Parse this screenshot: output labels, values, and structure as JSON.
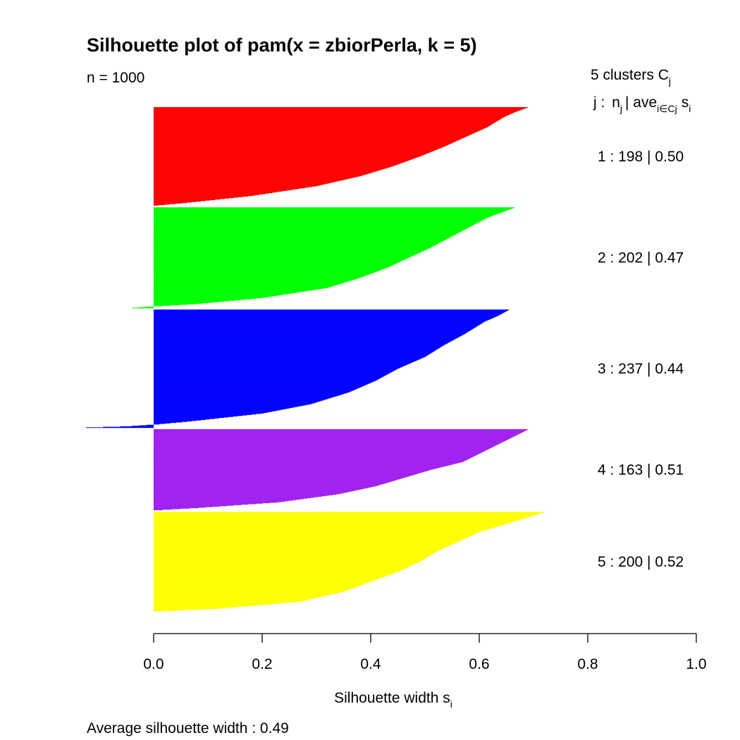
{
  "chart_data": {
    "type": "bar",
    "orientation": "horizontal",
    "title": "Silhouette plot of pam(x = zbiorPerla, k = 5)",
    "n_label": "n = 1000",
    "xlabel": "Silhouette width",
    "xlabel_subscript": "i",
    "xlim": [
      0,
      1
    ],
    "xticks": [
      "0.0",
      "0.2",
      "0.4",
      "0.6",
      "0.8",
      "1.0"
    ],
    "legend": {
      "header_line1": "5  clusters",
      "header_c": "C",
      "header_c_sub": "j",
      "header_line2_j": "j :",
      "header_n": "n",
      "header_n_sub": "j",
      "header_ave": "| ave",
      "header_ave_sub": "i∈Cj",
      "header_s": "s",
      "header_s_sub": "i"
    },
    "footer": "Average silhouette width :  0.49",
    "series": [
      {
        "cluster": "1",
        "n": "198",
        "ave": "0.50",
        "count": 198,
        "color": "#FF0000",
        "max": 0.69,
        "min": 0.0,
        "profile": [
          [
            0,
            0.69
          ],
          [
            0.05,
            0.665
          ],
          [
            0.1,
            0.645
          ],
          [
            0.2,
            0.615
          ],
          [
            0.3,
            0.575
          ],
          [
            0.4,
            0.535
          ],
          [
            0.5,
            0.49
          ],
          [
            0.6,
            0.44
          ],
          [
            0.7,
            0.38
          ],
          [
            0.8,
            0.3
          ],
          [
            0.9,
            0.18
          ],
          [
            0.97,
            0.06
          ],
          [
            1,
            0.0
          ]
        ]
      },
      {
        "cluster": "2",
        "n": "202",
        "ave": "0.47",
        "count": 202,
        "color": "#00FF00",
        "max": 0.665,
        "min": -0.04,
        "profile": [
          [
            0,
            0.665
          ],
          [
            0.05,
            0.64
          ],
          [
            0.1,
            0.615
          ],
          [
            0.2,
            0.58
          ],
          [
            0.3,
            0.545
          ],
          [
            0.4,
            0.51
          ],
          [
            0.5,
            0.47
          ],
          [
            0.6,
            0.43
          ],
          [
            0.7,
            0.38
          ],
          [
            0.8,
            0.32
          ],
          [
            0.9,
            0.2
          ],
          [
            0.96,
            0.08
          ],
          [
            0.985,
            0.0
          ],
          [
            1,
            -0.04
          ]
        ]
      },
      {
        "cluster": "3",
        "n": "237",
        "ave": "0.44",
        "count": 237,
        "color": "#0000FF",
        "max": 0.655,
        "min": -0.125,
        "profile": [
          [
            0,
            0.655
          ],
          [
            0.05,
            0.635
          ],
          [
            0.1,
            0.61
          ],
          [
            0.2,
            0.575
          ],
          [
            0.3,
            0.535
          ],
          [
            0.4,
            0.5
          ],
          [
            0.5,
            0.45
          ],
          [
            0.6,
            0.41
          ],
          [
            0.7,
            0.36
          ],
          [
            0.8,
            0.29
          ],
          [
            0.88,
            0.2
          ],
          [
            0.95,
            0.06
          ],
          [
            0.975,
            0.0
          ],
          [
            0.99,
            -0.05
          ],
          [
            1,
            -0.125
          ]
        ]
      },
      {
        "cluster": "4",
        "n": "163",
        "ave": "0.51",
        "count": 163,
        "color": "#A020F0",
        "max": 0.69,
        "min": 0.0,
        "profile": [
          [
            0,
            0.69
          ],
          [
            0.1,
            0.66
          ],
          [
            0.2,
            0.63
          ],
          [
            0.3,
            0.6
          ],
          [
            0.4,
            0.57
          ],
          [
            0.5,
            0.51
          ],
          [
            0.6,
            0.46
          ],
          [
            0.7,
            0.41
          ],
          [
            0.8,
            0.34
          ],
          [
            0.9,
            0.23
          ],
          [
            0.97,
            0.08
          ],
          [
            1,
            0.0
          ]
        ]
      },
      {
        "cluster": "5",
        "n": "200",
        "ave": "0.52",
        "count": 200,
        "color": "#FFFF00",
        "max": 0.72,
        "min": 0.0,
        "profile": [
          [
            0,
            0.72
          ],
          [
            0.05,
            0.69
          ],
          [
            0.1,
            0.66
          ],
          [
            0.2,
            0.6
          ],
          [
            0.3,
            0.56
          ],
          [
            0.4,
            0.52
          ],
          [
            0.5,
            0.49
          ],
          [
            0.6,
            0.45
          ],
          [
            0.7,
            0.4
          ],
          [
            0.8,
            0.35
          ],
          [
            0.9,
            0.27
          ],
          [
            0.97,
            0.12
          ],
          [
            1,
            0.0
          ]
        ]
      }
    ]
  }
}
